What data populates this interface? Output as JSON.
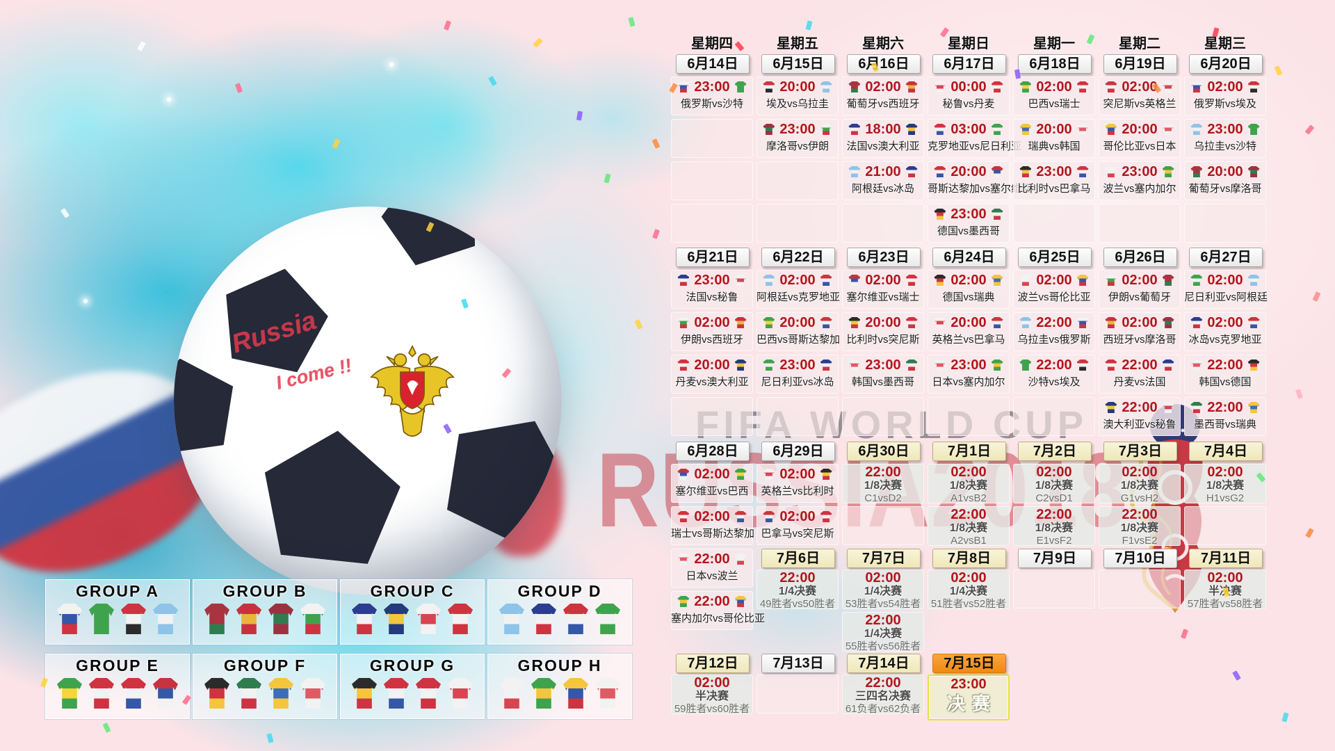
{
  "watermark": {
    "title": "FIFA WORLD CUP",
    "subtitle": "RUSSIA2018"
  },
  "ball": {
    "graffiti_line1": "Russia",
    "graffiti_line2": "I come !!"
  },
  "colors": {
    "time_red": "#b3161d",
    "knockout_date_bg": "#f4efcc",
    "final_date_orange": "#f79b2e",
    "final_cell_border": "#e6e13e"
  },
  "weekdays": [
    "星期四",
    "星期五",
    "星期六",
    "星期日",
    "星期一",
    "星期二",
    "星期三"
  ],
  "columns": [
    {
      "weekday": "星期四",
      "weeks": [
        {
          "w": 0,
          "date": "6月14日",
          "style": "plain",
          "cells": [
            {
              "t": "match",
              "time": "23:00",
              "home": "俄罗斯",
              "away": "沙特"
            },
            {
              "t": "empty"
            },
            {
              "t": "empty"
            },
            {
              "t": "empty"
            }
          ]
        },
        {
          "w": 1,
          "date": "6月21日",
          "style": "plain",
          "cells": [
            {
              "t": "match",
              "time": "23:00",
              "home": "法国",
              "away": "秘鲁"
            },
            {
              "t": "match",
              "time": "02:00",
              "home": "伊朗",
              "away": "西班牙"
            },
            {
              "t": "match",
              "time": "20:00",
              "home": "丹麦",
              "away": "澳大利亚"
            },
            {
              "t": "empty"
            }
          ]
        },
        {
          "w": 2,
          "date": "6月28日",
          "style": "plain",
          "cells": [
            {
              "t": "match",
              "time": "02:00",
              "home": "塞尔维亚",
              "away": "巴西"
            },
            {
              "t": "match",
              "time": "02:00",
              "home": "瑞士",
              "away": "哥斯达黎加"
            },
            {
              "t": "match",
              "time": "22:00",
              "home": "日本",
              "away": "波兰"
            },
            {
              "t": "match",
              "time": "22:00",
              "home": "塞内加尔",
              "away": "哥伦比亚"
            }
          ]
        },
        {
          "w": 4,
          "date": "7月12日",
          "style": "ko",
          "cells": [
            {
              "t": "ko",
              "time": "02:00",
              "round": "半决赛",
              "pair": "59胜者vs60胜者"
            }
          ]
        }
      ]
    },
    {
      "weekday": "星期五",
      "weeks": [
        {
          "w": 0,
          "date": "6月15日",
          "style": "plain",
          "cells": [
            {
              "t": "match",
              "time": "20:00",
              "home": "埃及",
              "away": "乌拉圭"
            },
            {
              "t": "match",
              "time": "23:00",
              "home": "摩洛哥",
              "away": "伊朗"
            },
            {
              "t": "empty"
            },
            {
              "t": "empty"
            }
          ]
        },
        {
          "w": 1,
          "date": "6月22日",
          "style": "plain",
          "cells": [
            {
              "t": "match",
              "time": "02:00",
              "home": "阿根廷",
              "away": "克罗地亚"
            },
            {
              "t": "match",
              "time": "20:00",
              "home": "巴西",
              "away": "哥斯达黎加"
            },
            {
              "t": "match",
              "time": "23:00",
              "home": "尼日利亚",
              "away": "冰岛"
            },
            {
              "t": "empty"
            }
          ]
        },
        {
          "w": 2,
          "date": "6月29日",
          "style": "plain",
          "cells": [
            {
              "t": "match",
              "time": "02:00",
              "home": "英格兰",
              "away": "比利时"
            },
            {
              "t": "match",
              "time": "02:00",
              "home": "巴拿马",
              "away": "突尼斯"
            }
          ]
        },
        {
          "w": 3,
          "date": "7月6日",
          "style": "ko",
          "cells": [
            {
              "t": "ko",
              "time": "22:00",
              "round": "1/4决赛",
              "pair": "49胜者vs50胜者"
            }
          ]
        },
        {
          "w": 4,
          "date": "7月13日",
          "style": "plain",
          "cells": [
            {
              "t": "empty"
            }
          ]
        }
      ]
    },
    {
      "weekday": "星期六",
      "weeks": [
        {
          "w": 0,
          "date": "6月16日",
          "style": "plain",
          "cells": [
            {
              "t": "match",
              "time": "02:00",
              "home": "葡萄牙",
              "away": "西班牙"
            },
            {
              "t": "match",
              "time": "18:00",
              "home": "法国",
              "away": "澳大利亚"
            },
            {
              "t": "match",
              "time": "21:00",
              "home": "阿根廷",
              "away": "冰岛"
            },
            {
              "t": "empty"
            }
          ]
        },
        {
          "w": 1,
          "date": "6月23日",
          "style": "plain",
          "cells": [
            {
              "t": "match",
              "time": "02:00",
              "home": "塞尔维亚",
              "away": "瑞士"
            },
            {
              "t": "match",
              "time": "20:00",
              "home": "比利时",
              "away": "突尼斯"
            },
            {
              "t": "match",
              "time": "23:00",
              "home": "韩国",
              "away": "墨西哥"
            },
            {
              "t": "empty"
            }
          ]
        },
        {
          "w": 2,
          "date": "6月30日",
          "style": "ko",
          "cells": [
            {
              "t": "ko",
              "time": "22:00",
              "round": "1/8决赛",
              "pair": "C1vsD2"
            },
            {
              "t": "empty"
            }
          ]
        },
        {
          "w": 3,
          "date": "7月7日",
          "style": "ko",
          "cells": [
            {
              "t": "ko",
              "time": "02:00",
              "round": "1/4决赛",
              "pair": "53胜者vs54胜者"
            },
            {
              "t": "ko",
              "time": "22:00",
              "round": "1/4决赛",
              "pair": "55胜者vs56胜者"
            }
          ]
        },
        {
          "w": 4,
          "date": "7月14日",
          "style": "ko",
          "cells": [
            {
              "t": "ko",
              "time": "22:00",
              "round": "三四名决赛",
              "pair": "61负者vs62负者"
            }
          ]
        }
      ]
    },
    {
      "weekday": "星期日",
      "weeks": [
        {
          "w": 0,
          "date": "6月17日",
          "style": "plain",
          "cells": [
            {
              "t": "match",
              "time": "00:00",
              "home": "秘鲁",
              "away": "丹麦"
            },
            {
              "t": "match",
              "time": "03:00",
              "home": "克罗地亚",
              "away": "尼日利亚"
            },
            {
              "t": "match",
              "time": "20:00",
              "home": "哥斯达黎加",
              "away": "塞尔维亚"
            },
            {
              "t": "match",
              "time": "23:00",
              "home": "德国",
              "away": "墨西哥"
            }
          ]
        },
        {
          "w": 1,
          "date": "6月24日",
          "style": "plain",
          "cells": [
            {
              "t": "match",
              "time": "02:00",
              "home": "德国",
              "away": "瑞典"
            },
            {
              "t": "match",
              "time": "20:00",
              "home": "英格兰",
              "away": "巴拿马"
            },
            {
              "t": "match",
              "time": "23:00",
              "home": "日本",
              "away": "塞内加尔"
            },
            {
              "t": "empty"
            }
          ]
        },
        {
          "w": 2,
          "date": "7月1日",
          "style": "ko",
          "cells": [
            {
              "t": "ko",
              "time": "02:00",
              "round": "1/8决赛",
              "pair": "A1vsB2"
            },
            {
              "t": "ko",
              "time": "22:00",
              "round": "1/8决赛",
              "pair": "A2vsB1"
            }
          ]
        },
        {
          "w": 3,
          "date": "7月8日",
          "style": "ko",
          "cells": [
            {
              "t": "ko",
              "time": "02:00",
              "round": "1/4决赛",
              "pair": "51胜者vs52胜者"
            }
          ]
        },
        {
          "w": 4,
          "date": "7月15日",
          "style": "final",
          "cells": [
            {
              "t": "final",
              "time": "23:00",
              "label": "决赛"
            }
          ]
        }
      ]
    },
    {
      "weekday": "星期一",
      "weeks": [
        {
          "w": 0,
          "date": "6月18日",
          "style": "plain",
          "cells": [
            {
              "t": "match",
              "time": "02:00",
              "home": "巴西",
              "away": "瑞士"
            },
            {
              "t": "match",
              "time": "20:00",
              "home": "瑞典",
              "away": "韩国"
            },
            {
              "t": "match",
              "time": "23:00",
              "home": "比利时",
              "away": "巴拿马"
            },
            {
              "t": "empty"
            }
          ]
        },
        {
          "w": 1,
          "date": "6月25日",
          "style": "plain",
          "cells": [
            {
              "t": "match",
              "time": "02:00",
              "home": "波兰",
              "away": "哥伦比亚"
            },
            {
              "t": "match",
              "time": "22:00",
              "home": "乌拉圭",
              "away": "俄罗斯"
            },
            {
              "t": "match",
              "time": "22:00",
              "home": "沙特",
              "away": "埃及"
            },
            {
              "t": "empty"
            }
          ]
        },
        {
          "w": 2,
          "date": "7月2日",
          "style": "ko",
          "cells": [
            {
              "t": "ko",
              "time": "02:00",
              "round": "1/8决赛",
              "pair": "C2vsD1"
            },
            {
              "t": "ko",
              "time": "22:00",
              "round": "1/8决赛",
              "pair": "E1vsF2"
            }
          ]
        },
        {
          "w": 3,
          "date": "7月9日",
          "style": "plain",
          "cells": [
            {
              "t": "empty"
            }
          ]
        }
      ]
    },
    {
      "weekday": "星期二",
      "weeks": [
        {
          "w": 0,
          "date": "6月19日",
          "style": "plain",
          "cells": [
            {
              "t": "match",
              "time": "02:00",
              "home": "突尼斯",
              "away": "英格兰"
            },
            {
              "t": "match",
              "time": "20:00",
              "home": "哥伦比亚",
              "away": "日本"
            },
            {
              "t": "match",
              "time": "23:00",
              "home": "波兰",
              "away": "塞内加尔"
            },
            {
              "t": "empty"
            }
          ]
        },
        {
          "w": 1,
          "date": "6月26日",
          "style": "plain",
          "cells": [
            {
              "t": "match",
              "time": "02:00",
              "home": "伊朗",
              "away": "葡萄牙"
            },
            {
              "t": "match",
              "time": "02:00",
              "home": "西班牙",
              "away": "摩洛哥"
            },
            {
              "t": "match",
              "time": "22:00",
              "home": "丹麦",
              "away": "法国"
            },
            {
              "t": "match",
              "time": "22:00",
              "home": "澳大利亚",
              "away": "秘鲁"
            }
          ]
        },
        {
          "w": 2,
          "date": "7月3日",
          "style": "ko",
          "cells": [
            {
              "t": "ko",
              "time": "02:00",
              "round": "1/8决赛",
              "pair": "G1vsH2"
            },
            {
              "t": "ko",
              "time": "22:00",
              "round": "1/8决赛",
              "pair": "F1vsE2"
            }
          ]
        },
        {
          "w": 3,
          "date": "7月10日",
          "style": "plain",
          "cells": [
            {
              "t": "empty"
            }
          ]
        }
      ]
    },
    {
      "weekday": "星期三",
      "weeks": [
        {
          "w": 0,
          "date": "6月20日",
          "style": "plain",
          "cells": [
            {
              "t": "match",
              "time": "02:00",
              "home": "俄罗斯",
              "away": "埃及"
            },
            {
              "t": "match",
              "time": "23:00",
              "home": "乌拉圭",
              "away": "沙特"
            },
            {
              "t": "match",
              "time": "20:00",
              "home": "葡萄牙",
              "away": "摩洛哥"
            },
            {
              "t": "empty"
            }
          ]
        },
        {
          "w": 1,
          "date": "6月27日",
          "style": "plain",
          "cells": [
            {
              "t": "match",
              "time": "02:00",
              "home": "尼日利亚",
              "away": "阿根廷"
            },
            {
              "t": "match",
              "time": "02:00",
              "home": "冰岛",
              "away": "克罗地亚"
            },
            {
              "t": "match",
              "time": "22:00",
              "home": "韩国",
              "away": "德国"
            },
            {
              "t": "match",
              "time": "22:00",
              "home": "墨西哥",
              "away": "瑞典"
            }
          ]
        },
        {
          "w": 2,
          "date": "7月4日",
          "style": "ko",
          "cells": [
            {
              "t": "ko",
              "time": "02:00",
              "round": "1/8决赛",
              "pair": "H1vsG2"
            },
            {
              "t": "empty"
            }
          ]
        },
        {
          "w": 3,
          "date": "7月11日",
          "style": "ko",
          "cells": [
            {
              "t": "ko",
              "time": "02:00",
              "round": "半决赛",
              "pair": "57胜者vs58胜者"
            }
          ]
        }
      ]
    }
  ],
  "groups": [
    {
      "label": "GROUP A",
      "teams": [
        "俄罗斯",
        "沙特",
        "埃及",
        "乌拉圭"
      ]
    },
    {
      "label": "GROUP B",
      "teams": [
        "葡萄牙",
        "西班牙",
        "摩洛哥",
        "伊朗"
      ]
    },
    {
      "label": "GROUP C",
      "teams": [
        "法国",
        "澳大利亚",
        "秘鲁",
        "丹麦"
      ]
    },
    {
      "label": "GROUP D",
      "teams": [
        "阿根廷",
        "冰岛",
        "克罗地亚",
        "尼日利亚"
      ]
    },
    {
      "label": "GROUP E",
      "teams": [
        "巴西",
        "瑞士",
        "哥斯达黎加",
        "塞尔维亚"
      ]
    },
    {
      "label": "GROUP F",
      "teams": [
        "德国",
        "墨西哥",
        "瑞典",
        "韩国"
      ]
    },
    {
      "label": "GROUP G",
      "teams": [
        "比利时",
        "巴拿马",
        "突尼斯",
        "英格兰"
      ]
    },
    {
      "label": "GROUP H",
      "teams": [
        "波兰",
        "塞内加尔",
        "哥伦比亚",
        "日本"
      ]
    }
  ],
  "jerseys": {
    "俄罗斯": [
      "#f2f2f2",
      "#3557a7",
      "#cf3341"
    ],
    "沙特": [
      "#3fa34d"
    ],
    "埃及": [
      "#cf3341",
      "#f2f2f2",
      "#2b2b2b"
    ],
    "乌拉圭": [
      "#8fc3e8",
      "#f2f2f2",
      "#8fc3e8"
    ],
    "葡萄牙": [
      "#a93440",
      "#a93440",
      "#2f7d4f"
    ],
    "西班牙": [
      "#c8323e",
      "#e8b63c",
      "#c8323e"
    ],
    "秘鲁": [
      "#f2f2f2",
      "#d84450",
      "#f2f2f2"
    ],
    "丹麦": [
      "#d0333f",
      "#f2f2f2",
      "#d0333f"
    ],
    "巴西": [
      "#3fa34d",
      "#f5d43c",
      "#3fa34d"
    ],
    "瑞士": [
      "#d0333f",
      "#f2f2f2",
      "#d0333f"
    ],
    "突尼斯": [
      "#cf3341",
      "#f2f2f2",
      "#cf3341"
    ],
    "英格兰": [
      "#f2f2f2",
      "#d84450",
      "#f2f2f2"
    ],
    "摩洛哥": [
      "#9e3140",
      "#2f7d4f",
      "#9e3140"
    ],
    "伊朗": [
      "#f2f2f2",
      "#3fa34d",
      "#cf3341"
    ],
    "法国": [
      "#2c3c8f",
      "#f2f2f2",
      "#cf3341"
    ],
    "澳大利亚": [
      "#233a7d",
      "#f4c53d",
      "#233a7d"
    ],
    "克罗地亚": [
      "#d0333f",
      "#f2f2f2",
      "#3557a7"
    ],
    "尼日利亚": [
      "#3fa34d",
      "#f2f2f2",
      "#3fa34d"
    ],
    "瑞典": [
      "#f4c53d",
      "#3b6fb5",
      "#f4c53d"
    ],
    "韩国": [
      "#f2f2f2",
      "#e05a64",
      "#f2f2f2"
    ],
    "哥伦比亚": [
      "#f4c53d",
      "#3557a7",
      "#cf3341"
    ],
    "日本": [
      "#f2f2f2",
      "#e05a64",
      "#f2f2f2"
    ],
    "阿根廷": [
      "#8fc3e8",
      "#f2f2f2",
      "#8fc3e8"
    ],
    "冰岛": [
      "#2c3c8f",
      "#f2f2f2",
      "#cf3341"
    ],
    "哥斯达黎加": [
      "#d0333f",
      "#f2f2f2",
      "#3557a7"
    ],
    "塞尔维亚": [
      "#c8323e",
      "#3557a7",
      "#f2f2f2"
    ],
    "比利时": [
      "#2b2b2b",
      "#f4c53d",
      "#cf3341"
    ],
    "巴拿马": [
      "#d0333f",
      "#f2f2f2",
      "#3557a7"
    ],
    "波兰": [
      "#f2f2f2",
      "#f2f2f2",
      "#d84450"
    ],
    "塞内加尔": [
      "#3fa34d",
      "#f4c53d",
      "#3fa34d"
    ],
    "德国": [
      "#2b2b2b",
      "#cf3341",
      "#f4c53d"
    ],
    "墨西哥": [
      "#2f7d4f",
      "#f2f2f2",
      "#cf3341"
    ]
  }
}
